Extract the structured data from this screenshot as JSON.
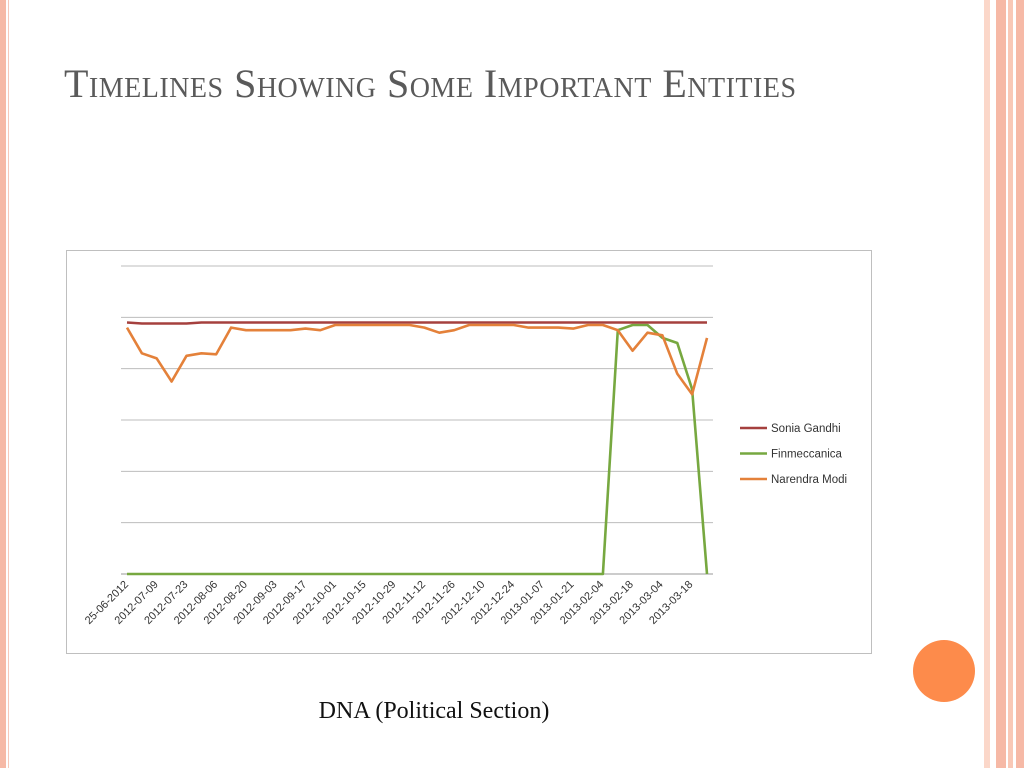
{
  "slide": {
    "title": "Timelines Showing Some Important Entities",
    "caption": "DNA (Political Section)"
  },
  "theme": {
    "accent_orange": "#fd8b4b",
    "border_pink": "#f6b9a6"
  },
  "chart_data": {
    "type": "line",
    "title": "",
    "xlabel": "",
    "ylabel": "",
    "ylim": [
      0,
      6
    ],
    "y_axis_labels_shown": false,
    "grid": true,
    "legend_position": "right",
    "x_tick_labels": [
      "25-06-2012",
      "2012-07-09",
      "2012-07-23",
      "2012-08-06",
      "2012-08-20",
      "2012-09-03",
      "2012-09-17",
      "2012-10-01",
      "2012-10-15",
      "2012-10-29",
      "2012-11-12",
      "2012-11-26",
      "2012-12-10",
      "2012-12-24",
      "2013-01-07",
      "2013-01-21",
      "2013-02-04",
      "2013-02-18",
      "2013-03-04",
      "2013-03-18"
    ],
    "series": [
      {
        "name": "Sonia Gandhi",
        "color": "#a5403e",
        "values": [
          4.9,
          4.88,
          4.88,
          4.88,
          4.88,
          4.9,
          4.9,
          4.9,
          4.9,
          4.9,
          4.9,
          4.9,
          4.9,
          4.9,
          4.9,
          4.9,
          4.9,
          4.9,
          4.9,
          4.9,
          4.9,
          4.9,
          4.9,
          4.9,
          4.9,
          4.9,
          4.9,
          4.9,
          4.9,
          4.9,
          4.9,
          4.9,
          4.9,
          4.9,
          4.9,
          4.9,
          4.9,
          4.9,
          4.9,
          4.9
        ]
      },
      {
        "name": "Finmeccanica",
        "color": "#77a840",
        "values": [
          0,
          0,
          0,
          0,
          0,
          0,
          0,
          0,
          0,
          0,
          0,
          0,
          0,
          0,
          0,
          0,
          0,
          0,
          0,
          0,
          0,
          0,
          0,
          0,
          0,
          0,
          0,
          0,
          0,
          0,
          0,
          0,
          0,
          4.75,
          4.85,
          4.85,
          4.6,
          4.5,
          3.6,
          0
        ]
      },
      {
        "name": "Narendra Modi",
        "color": "#e4813a",
        "values": [
          4.8,
          4.3,
          4.2,
          3.75,
          4.25,
          4.3,
          4.28,
          4.8,
          4.75,
          4.75,
          4.75,
          4.75,
          4.78,
          4.75,
          4.85,
          4.85,
          4.85,
          4.85,
          4.85,
          4.85,
          4.8,
          4.7,
          4.75,
          4.85,
          4.85,
          4.85,
          4.85,
          4.8,
          4.8,
          4.8,
          4.78,
          4.85,
          4.85,
          4.75,
          4.35,
          4.7,
          4.65,
          3.9,
          3.5,
          4.6
        ]
      }
    ]
  }
}
